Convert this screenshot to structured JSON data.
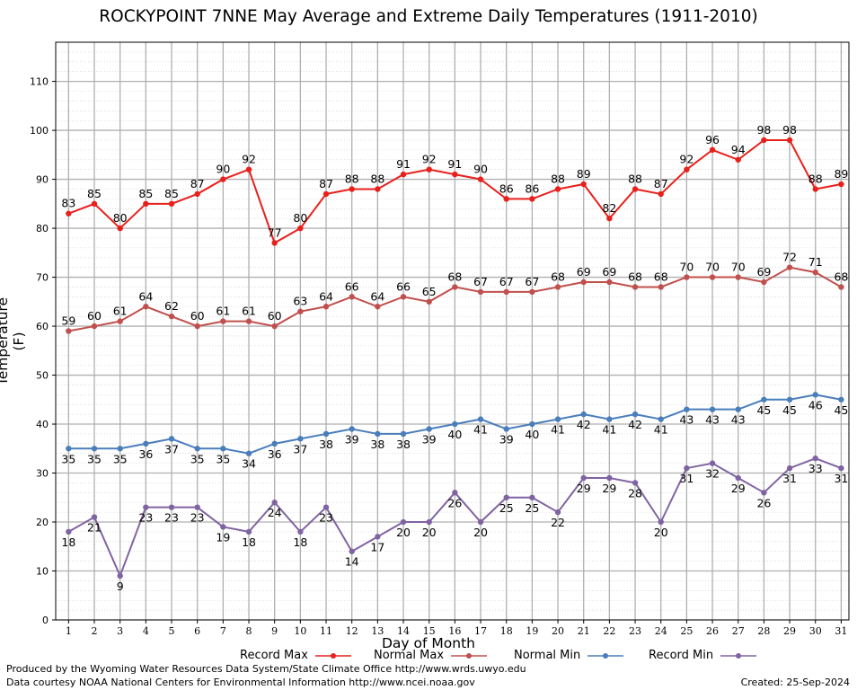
{
  "title": "ROCKYPOINT 7NNE May Average and Extreme Daily Temperatures (1911-2010)",
  "footer": {
    "produced_by": "Produced by the Wyoming Water Resources Data System/State Climate Office http://www.wrds.uwyo.edu",
    "courtesy": "Data courtesy NOAA National Centers for Environmental Information http://www.ncei.noaa.gov",
    "created": "Created:  25-Sep-2024"
  },
  "chart_data": {
    "type": "line",
    "title": "ROCKYPOINT 7NNE May Average and Extreme Daily Temperatures (1911-2010)",
    "xlabel": "Day of Month",
    "ylabel": "Temperature (F)",
    "ylim": [
      0,
      118
    ],
    "xlim": [
      0.5,
      31.3
    ],
    "yticks": [
      0,
      10,
      20,
      30,
      40,
      50,
      60,
      70,
      80,
      90,
      100,
      110
    ],
    "x": [
      1,
      2,
      3,
      4,
      5,
      6,
      7,
      8,
      9,
      10,
      11,
      12,
      13,
      14,
      15,
      16,
      17,
      18,
      19,
      20,
      21,
      22,
      23,
      24,
      25,
      26,
      27,
      28,
      29,
      30,
      31
    ],
    "grid": true,
    "legend_position": "bottom",
    "series": [
      {
        "name": "Record Max",
        "color": "#e8201c",
        "label_pos": "above",
        "values": [
          83,
          85,
          80,
          85,
          85,
          87,
          90,
          92,
          77,
          80,
          87,
          88,
          88,
          91,
          92,
          91,
          90,
          86,
          86,
          88,
          89,
          82,
          88,
          87,
          92,
          96,
          94,
          98,
          98,
          88,
          89
        ]
      },
      {
        "name": "Normal Max",
        "color": "#c0504d",
        "label_pos": "above",
        "values": [
          59,
          60,
          61,
          64,
          62,
          60,
          61,
          61,
          60,
          63,
          64,
          66,
          64,
          66,
          65,
          68,
          67,
          67,
          67,
          68,
          69,
          69,
          68,
          68,
          70,
          70,
          70,
          69,
          72,
          71,
          68
        ]
      },
      {
        "name": "Normal Min",
        "color": "#4a7ebb",
        "label_pos": "below",
        "values": [
          35,
          35,
          35,
          36,
          37,
          35,
          35,
          34,
          36,
          37,
          38,
          39,
          38,
          38,
          39,
          40,
          41,
          39,
          40,
          41,
          42,
          41,
          42,
          41,
          43,
          43,
          43,
          45,
          45,
          46,
          45
        ]
      },
      {
        "name": "Record Min",
        "color": "#8064a2",
        "label_pos": "below",
        "values": [
          18,
          21,
          9,
          23,
          23,
          23,
          19,
          18,
          24,
          18,
          23,
          14,
          17,
          20,
          20,
          26,
          20,
          25,
          25,
          22,
          29,
          29,
          28,
          20,
          31,
          32,
          29,
          26,
          31,
          33,
          31
        ]
      }
    ]
  }
}
